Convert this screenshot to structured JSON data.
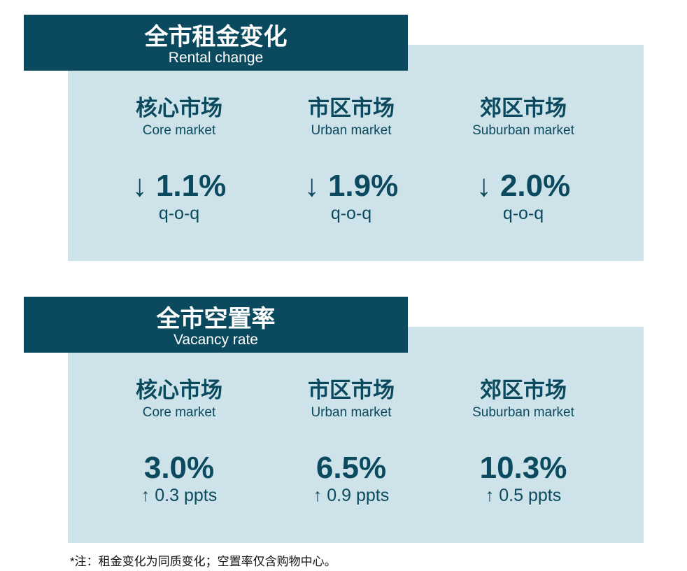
{
  "sections": [
    {
      "title_cn": "全市租金变化",
      "title_en": "Rental change",
      "items": [
        {
          "name_cn": "核心市场",
          "name_en": "Core market",
          "value": "↓ 1.1%",
          "note": "q-o-q"
        },
        {
          "name_cn": "市区市场",
          "name_en": "Urban market",
          "value": "↓ 1.9%",
          "note": "q-o-q"
        },
        {
          "name_cn": "郊区市场",
          "name_en": "Suburban market",
          "value": "↓ 2.0%",
          "note": "q-o-q"
        }
      ]
    },
    {
      "title_cn": "全市空置率",
      "title_en": "Vacancy rate",
      "items": [
        {
          "name_cn": "核心市场",
          "name_en": "Core market",
          "value": "3.0%",
          "note": "↑ 0.3 ppts"
        },
        {
          "name_cn": "市区市场",
          "name_en": "Urban market",
          "value": "6.5%",
          "note": "↑ 0.9 ppts"
        },
        {
          "name_cn": "郊区市场",
          "name_en": "Suburban market",
          "value": "10.3%",
          "note": "↑ 0.5 ppts"
        }
      ]
    }
  ],
  "footnote": "*注：租金变化为同质变化；空置率仅含购物中心。"
}
